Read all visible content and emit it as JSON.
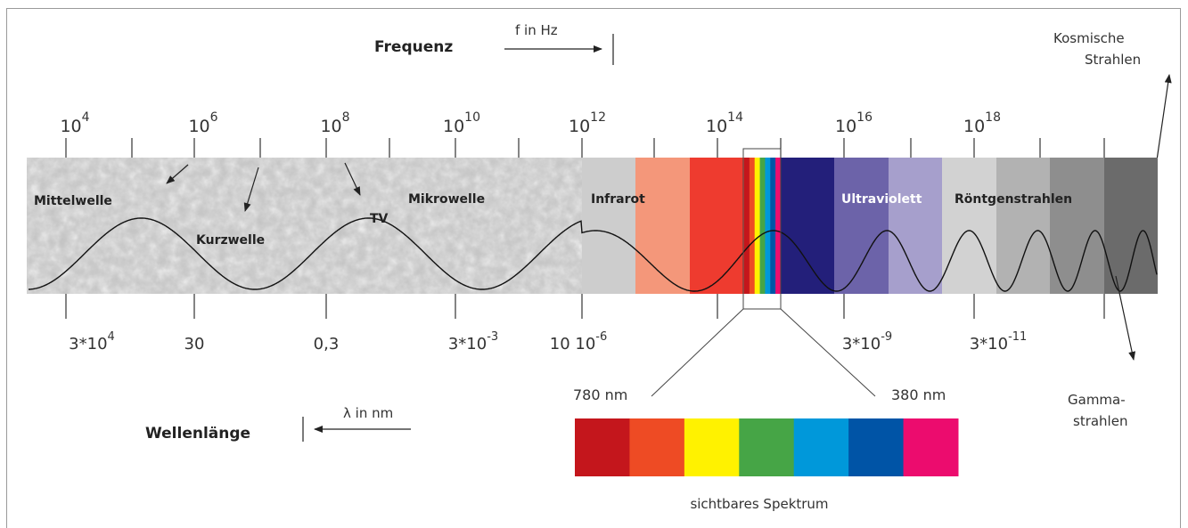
{
  "header": {
    "frequency_title": "Frequenz",
    "frequency_unit": "f in Hz",
    "wavelength_title": "Wellenlänge",
    "wavelength_unit": "λ in nm"
  },
  "frequency_ticks": [
    {
      "base": "10",
      "exp": "4"
    },
    {
      "base": "10",
      "exp": "6"
    },
    {
      "base": "10",
      "exp": "8"
    },
    {
      "base": "10",
      "exp": "10"
    },
    {
      "base": "10",
      "exp": "12"
    },
    {
      "base": "10",
      "exp": "14"
    },
    {
      "base": "10",
      "exp": "16"
    },
    {
      "base": "10",
      "exp": "18"
    }
  ],
  "wavelength_ticks": [
    {
      "base": "3*10",
      "exp": "4"
    },
    {
      "base": "30",
      "exp": ""
    },
    {
      "base": "0,3",
      "exp": ""
    },
    {
      "base": "3*10",
      "exp": "-3"
    },
    {
      "base": "10 10",
      "exp": "-6"
    },
    {
      "base": "3*10",
      "exp": "-9"
    },
    {
      "base": "3*10",
      "exp": "-11"
    }
  ],
  "band_labels": {
    "mittelwelle": "Mittelwelle",
    "kurzwelle": "Kurzwelle",
    "tv": "TV",
    "mikrowelle": "Mikrowelle",
    "infrarot": "Infrarot",
    "ultraviolett": "Ultraviolett",
    "roentgen": "Röntgenstrahlen"
  },
  "side_labels": {
    "cosmic_line1": "Kosmische",
    "cosmic_line2": "Strahlen",
    "gamma_line1": "Gamma-",
    "gamma_line2": "strahlen"
  },
  "visible": {
    "left_nm": "780 nm",
    "right_nm": "380 nm",
    "caption": "sichtbares Spektrum",
    "colors": [
      "#c4161c",
      "#ee4b24",
      "#fff200",
      "#46a546",
      "#0098da",
      "#0054a6",
      "#ec0c6e"
    ]
  },
  "band_colors": {
    "radio": "#c2c2c2",
    "ir_light": "#cdcdcd",
    "ir_salmon": "#f4977a",
    "ir_red": "#ee3b2f",
    "uv_dark": "#231f7a",
    "uv_mid": "#6c63a9",
    "uv_light": "#a69fcc",
    "xray1": "#d2d2d2",
    "xray2": "#b2b2b2",
    "xray3": "#8e8e8e",
    "gamma": "#6b6b6b"
  }
}
